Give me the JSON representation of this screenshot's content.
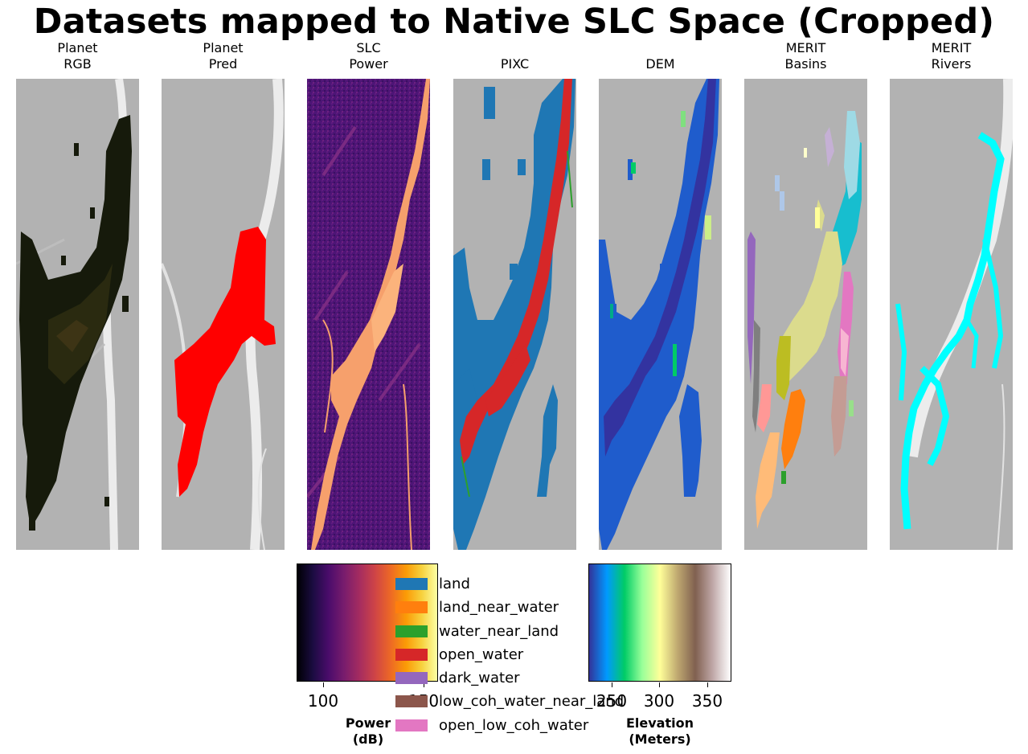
{
  "title": "Datasets mapped to Native SLC Space (Cropped)",
  "panels": [
    {
      "line1": "Planet",
      "line2": "RGB",
      "icon": "planet-rgb-image"
    },
    {
      "line1": "Planet",
      "line2": "Pred",
      "icon": "planet-pred-image"
    },
    {
      "line1": "SLC",
      "line2": "Power",
      "icon": "slc-power-image"
    },
    {
      "line1": "",
      "line2": "PIXC",
      "icon": "pixc-classification-image"
    },
    {
      "line1": "",
      "line2": "DEM",
      "icon": "dem-elevation-image"
    },
    {
      "line1": "MERIT",
      "line2": "Basins",
      "icon": "merit-basins-image"
    },
    {
      "line1": "MERIT",
      "line2": "Rivers",
      "icon": "merit-rivers-image"
    }
  ],
  "colors": {
    "background_gray": "#b4b4b4",
    "planet_pred": "#ff0000",
    "merit_rivers": "#00ffff",
    "pixc_land": "#1f77b4",
    "pixc_open_water": "#d62728",
    "dem_water": "#3333a0"
  },
  "power_colorbar": {
    "label_line1": "Power",
    "label_line2": "(dB)",
    "ticks": [
      "100",
      "150"
    ],
    "colormap": "magma"
  },
  "dem_colorbar": {
    "label_line1": "Elevation",
    "label_line2": "(Meters)",
    "ticks": [
      "250",
      "300",
      "350"
    ],
    "colormap": "terrain"
  },
  "legend": [
    {
      "label": "land",
      "color": "#1f77b4"
    },
    {
      "label": "land_near_water",
      "color": "#ff7f0e"
    },
    {
      "label": "water_near_land",
      "color": "#2ca02c"
    },
    {
      "label": "open_water",
      "color": "#d62728"
    },
    {
      "label": "dark_water",
      "color": "#9467bd"
    },
    {
      "label": "low_coh_water_near_land",
      "color": "#8c564b"
    },
    {
      "label": "open_low_coh_water",
      "color": "#e377c2"
    }
  ]
}
